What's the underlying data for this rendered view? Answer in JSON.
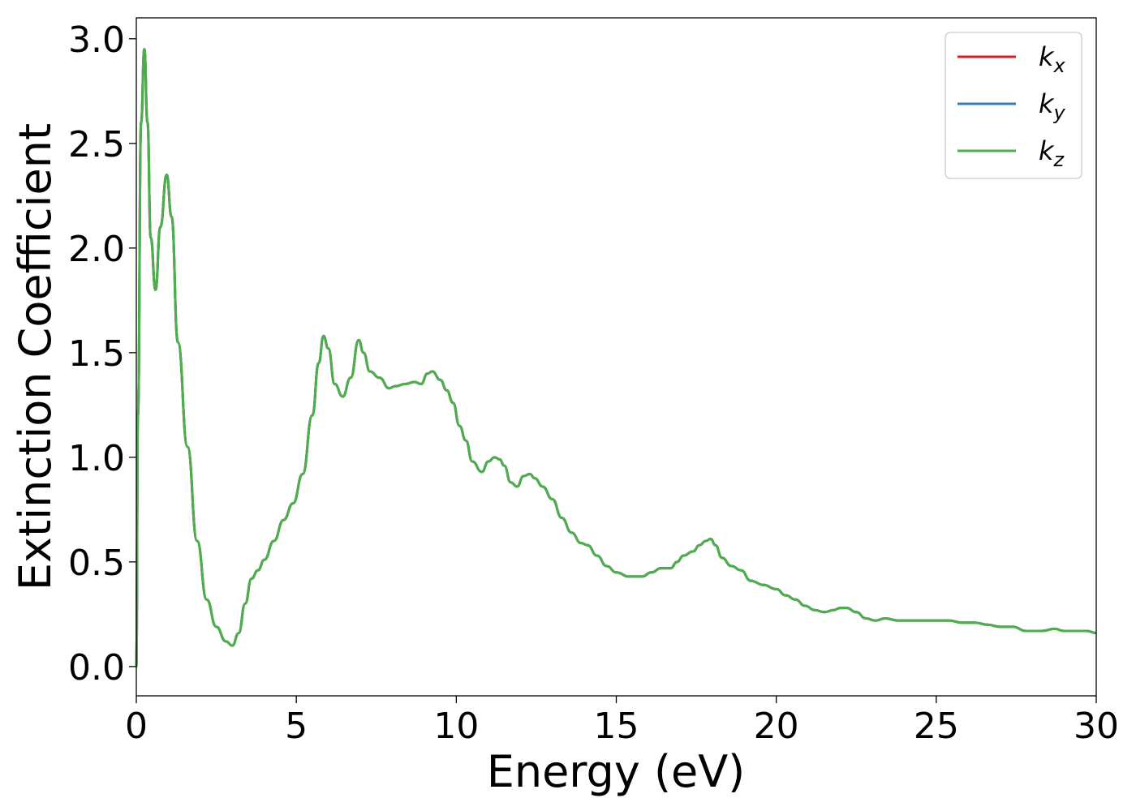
{
  "chart_data": {
    "type": "line",
    "title": "",
    "xlabel": "Energy (eV)",
    "ylabel": "Extinction Coefficient",
    "xlim": [
      0,
      30
    ],
    "ylim": [
      -0.14,
      3.1
    ],
    "xticks": [
      0,
      5,
      10,
      15,
      20,
      25,
      30
    ],
    "xtick_labels": [
      "0",
      "5",
      "10",
      "15",
      "20",
      "25",
      "30"
    ],
    "yticks": [
      0.0,
      0.5,
      1.0,
      1.5,
      2.0,
      2.5,
      3.0
    ],
    "ytick_labels": [
      "0.0",
      "0.5",
      "1.0",
      "1.5",
      "2.0",
      "2.5",
      "3.0"
    ],
    "grid": false,
    "legend_position": "top-right",
    "series": [
      {
        "name": "k",
        "subscript": "x",
        "color": "#e41a1c"
      },
      {
        "name": "k",
        "subscript": "y",
        "color": "#377eb8"
      },
      {
        "name": "k",
        "subscript": "z",
        "color": "#4daf4a"
      }
    ],
    "x": [
      0,
      0.05,
      0.15,
      0.25,
      0.35,
      0.45,
      0.6,
      0.75,
      0.95,
      1.1,
      1.3,
      1.6,
      1.9,
      2.2,
      2.5,
      2.8,
      3.0,
      3.2,
      3.4,
      3.6,
      3.8,
      4.0,
      4.3,
      4.6,
      4.9,
      5.2,
      5.5,
      5.7,
      5.85,
      6.0,
      6.2,
      6.45,
      6.7,
      6.95,
      7.1,
      7.3,
      7.6,
      7.9,
      8.1,
      8.4,
      8.7,
      8.9,
      9.1,
      9.25,
      9.5,
      9.7,
      9.9,
      10.1,
      10.3,
      10.5,
      10.8,
      11.0,
      11.2,
      11.35,
      11.5,
      11.7,
      11.9,
      12.1,
      12.3,
      12.45,
      12.7,
      13.0,
      13.3,
      13.6,
      13.9,
      14.1,
      14.4,
      14.7,
      15.0,
      15.4,
      15.8,
      16.1,
      16.4,
      16.7,
      16.9,
      17.1,
      17.4,
      17.6,
      17.8,
      17.95,
      18.1,
      18.3,
      18.6,
      18.9,
      19.2,
      19.6,
      20.0,
      20.3,
      20.6,
      20.9,
      21.2,
      21.5,
      21.8,
      22.0,
      22.2,
      22.5,
      22.8,
      23.1,
      23.4,
      23.8,
      24.2,
      24.6,
      25.0,
      25.4,
      25.8,
      26.2,
      26.6,
      27.0,
      27.4,
      27.8,
      28.0,
      28.3,
      28.7,
      29.0,
      29.4,
      29.7,
      30.0
    ],
    "values": [
      0.0,
      1.2,
      2.6,
      2.95,
      2.6,
      2.05,
      1.8,
      2.1,
      2.35,
      2.15,
      1.55,
      1.05,
      0.6,
      0.32,
      0.19,
      0.12,
      0.1,
      0.16,
      0.3,
      0.42,
      0.46,
      0.51,
      0.6,
      0.7,
      0.78,
      0.92,
      1.2,
      1.45,
      1.58,
      1.52,
      1.35,
      1.29,
      1.38,
      1.56,
      1.5,
      1.41,
      1.38,
      1.33,
      1.34,
      1.35,
      1.36,
      1.35,
      1.4,
      1.41,
      1.37,
      1.32,
      1.26,
      1.15,
      1.08,
      0.98,
      0.93,
      0.98,
      1.0,
      0.99,
      0.96,
      0.88,
      0.86,
      0.91,
      0.92,
      0.9,
      0.86,
      0.8,
      0.71,
      0.64,
      0.59,
      0.58,
      0.53,
      0.48,
      0.45,
      0.43,
      0.43,
      0.45,
      0.47,
      0.47,
      0.5,
      0.53,
      0.55,
      0.58,
      0.6,
      0.61,
      0.58,
      0.52,
      0.48,
      0.46,
      0.41,
      0.39,
      0.37,
      0.34,
      0.32,
      0.29,
      0.27,
      0.26,
      0.27,
      0.28,
      0.28,
      0.26,
      0.23,
      0.22,
      0.23,
      0.22,
      0.22,
      0.22,
      0.22,
      0.22,
      0.21,
      0.21,
      0.2,
      0.19,
      0.19,
      0.17,
      0.17,
      0.17,
      0.18,
      0.17,
      0.17,
      0.17,
      0.16
    ]
  }
}
